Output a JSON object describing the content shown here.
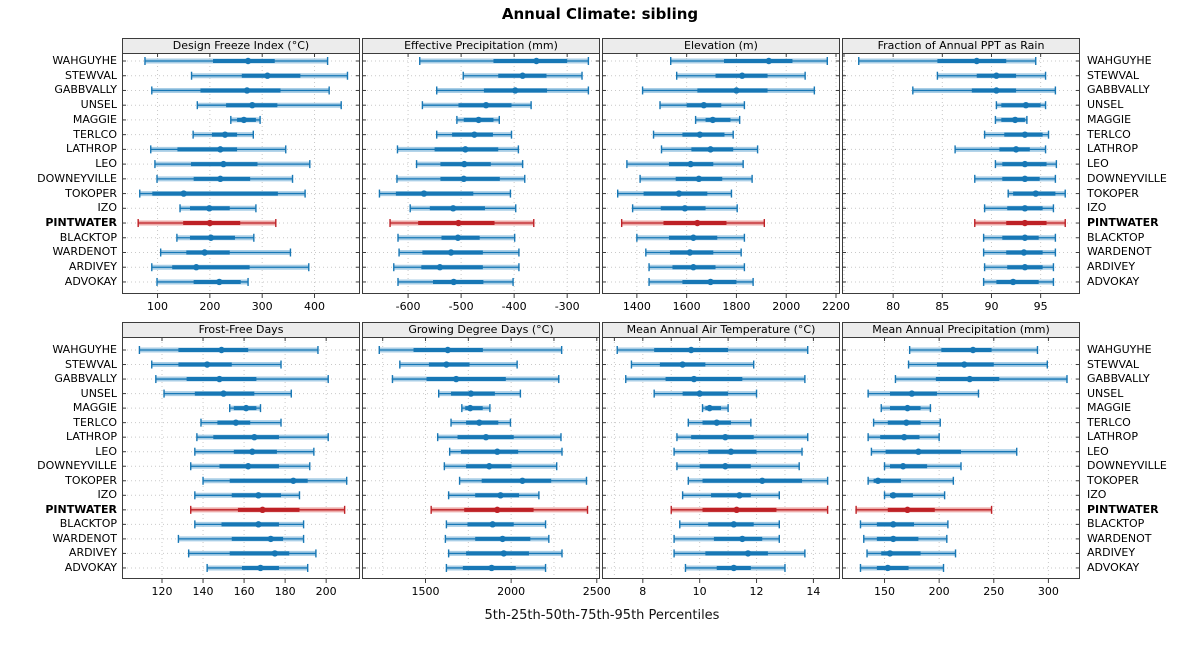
{
  "title": "Annual Climate: sibling",
  "caption": "5th-25th-50th-75th-95th Percentiles",
  "percentile_labels": [
    "5th",
    "25th",
    "50th",
    "75th",
    "95th"
  ],
  "colors": {
    "series": "#1777b5",
    "series_light": "#a9cee6",
    "highlight": "#be2126",
    "highlight_light": "#edadab",
    "grid": "#c9c9c9",
    "border": "#3c3c3c",
    "header_bg": "#ececec"
  },
  "sites": [
    {
      "name": "WAHGUYHE",
      "highlight": false
    },
    {
      "name": "STEWVAL",
      "highlight": false
    },
    {
      "name": "GABBVALLY",
      "highlight": false
    },
    {
      "name": "UNSEL",
      "highlight": false
    },
    {
      "name": "MAGGIE",
      "highlight": false
    },
    {
      "name": "TERLCO",
      "highlight": false
    },
    {
      "name": "LATHROP",
      "highlight": false
    },
    {
      "name": "LEO",
      "highlight": false
    },
    {
      "name": "DOWNEYVILLE",
      "highlight": false
    },
    {
      "name": "TOKOPER",
      "highlight": false
    },
    {
      "name": "IZO",
      "highlight": false
    },
    {
      "name": "PINTWATER",
      "highlight": true
    },
    {
      "name": "BLACKTOP",
      "highlight": false
    },
    {
      "name": "WARDENOT",
      "highlight": false
    },
    {
      "name": "ARDIVEY",
      "highlight": false
    },
    {
      "name": "ADVOKAY",
      "highlight": false
    }
  ],
  "chart_data": {
    "type": "dotplot-interval",
    "note": "Each row shows 5th-25th-50th-75th-95th percentiles per site; values array order matches sites array (top to bottom).",
    "panels": [
      {
        "title": "Design Freeze Index (°C)",
        "ticks": [
          100,
          200,
          300,
          400
        ],
        "grid": [
          100,
          200,
          300,
          400
        ],
        "range": [
          34,
          485
        ],
        "values": [
          [
            76,
            206,
            273,
            324,
            425
          ],
          [
            165,
            261,
            310,
            373,
            463
          ],
          [
            89,
            182,
            271,
            335,
            428
          ],
          [
            176,
            231,
            281,
            329,
            451
          ],
          [
            240,
            252,
            265,
            288,
            296
          ],
          [
            168,
            204,
            229,
            252,
            283
          ],
          [
            87,
            138,
            220,
            252,
            345
          ],
          [
            95,
            164,
            226,
            291,
            391
          ],
          [
            99,
            169,
            220,
            277,
            358
          ],
          [
            66,
            90,
            150,
            330,
            382
          ],
          [
            143,
            162,
            199,
            238,
            288
          ],
          [
            63,
            149,
            200,
            258,
            326
          ],
          [
            137,
            162,
            202,
            248,
            284
          ],
          [
            106,
            155,
            190,
            238,
            354
          ],
          [
            89,
            128,
            174,
            276,
            389
          ],
          [
            99,
            169,
            218,
            259,
            273
          ]
        ]
      },
      {
        "title": "Effective Precipitation (mm)",
        "ticks": [
          -600,
          -500,
          -400,
          -300
        ],
        "grid": [
          -600,
          -500,
          -400,
          -300
        ],
        "range": [
          -685,
          -240
        ],
        "values": [
          [
            -578,
            -439,
            -358,
            -300,
            -260
          ],
          [
            -496,
            -430,
            -384,
            -339,
            -272
          ],
          [
            -546,
            -457,
            -398,
            -338,
            -260
          ],
          [
            -573,
            -505,
            -453,
            -405,
            -368
          ],
          [
            -508,
            -495,
            -467,
            -439,
            -428
          ],
          [
            -546,
            -517,
            -475,
            -440,
            -405
          ],
          [
            -620,
            -550,
            -492,
            -430,
            -392
          ],
          [
            -584,
            -539,
            -494,
            -444,
            -384
          ],
          [
            -621,
            -539,
            -495,
            -427,
            -380
          ],
          [
            -654,
            -623,
            -570,
            -477,
            -407
          ],
          [
            -596,
            -559,
            -515,
            -455,
            -397
          ],
          [
            -634,
            -581,
            -505,
            -437,
            -363
          ],
          [
            -619,
            -537,
            -506,
            -465,
            -399
          ],
          [
            -617,
            -573,
            -519,
            -459,
            -391
          ],
          [
            -627,
            -575,
            -540,
            -459,
            -391
          ],
          [
            -619,
            -553,
            -514,
            -458,
            -402
          ]
        ]
      },
      {
        "title": "Elevation (m)",
        "ticks": [
          1400,
          1600,
          1800,
          2000,
          2200
        ],
        "grid": [
          1400,
          1600,
          1800,
          2000,
          2200
        ],
        "range": [
          1264,
          2212
        ],
        "values": [
          [
            1536,
            1750,
            1930,
            2025,
            2165
          ],
          [
            1560,
            1716,
            1823,
            1925,
            2076
          ],
          [
            1423,
            1643,
            1800,
            1925,
            2113
          ],
          [
            1493,
            1600,
            1669,
            1739,
            1832
          ],
          [
            1636,
            1676,
            1705,
            1776,
            1813
          ],
          [
            1467,
            1583,
            1653,
            1752,
            1787
          ],
          [
            1499,
            1619,
            1696,
            1787,
            1885
          ],
          [
            1360,
            1529,
            1616,
            1707,
            1827
          ],
          [
            1413,
            1556,
            1649,
            1743,
            1863
          ],
          [
            1323,
            1427,
            1569,
            1683,
            1780
          ],
          [
            1383,
            1496,
            1593,
            1676,
            1803
          ],
          [
            1339,
            1507,
            1643,
            1760,
            1912
          ],
          [
            1400,
            1529,
            1627,
            1723,
            1832
          ],
          [
            1436,
            1533,
            1613,
            1707,
            1819
          ],
          [
            1449,
            1543,
            1627,
            1716,
            1832
          ],
          [
            1449,
            1583,
            1696,
            1800,
            1867
          ]
        ]
      },
      {
        "title": "Fraction of Annual PPT as Rain",
        "ticks": [
          80,
          85,
          90,
          95
        ],
        "grid": [
          75,
          80,
          85,
          90,
          95
        ],
        "range": [
          74.9,
          98.9
        ],
        "values": [
          [
            76.5,
            84.5,
            88.5,
            91.5,
            94.5
          ],
          [
            84.5,
            88.5,
            90.5,
            92.5,
            95.5
          ],
          [
            82.0,
            88.0,
            90.5,
            92.5,
            96.5
          ],
          [
            90.5,
            91.0,
            93.5,
            95.0,
            95.5
          ],
          [
            90.4,
            91.0,
            92.4,
            93.4,
            93.6
          ],
          [
            89.3,
            91.3,
            93.4,
            95.2,
            95.8
          ],
          [
            86.3,
            90.8,
            92.5,
            93.9,
            95.5
          ],
          [
            90.4,
            91.1,
            93.4,
            95.6,
            96.6
          ],
          [
            88.3,
            91.1,
            93.4,
            94.9,
            96.5
          ],
          [
            91.7,
            92.2,
            94.5,
            96.5,
            97.5
          ],
          [
            89.3,
            91.6,
            93.4,
            95.2,
            96.3
          ],
          [
            88.3,
            91.5,
            93.4,
            95.6,
            97.5
          ],
          [
            89.2,
            91.1,
            93.4,
            94.8,
            96.5
          ],
          [
            89.2,
            91.5,
            93.3,
            95.2,
            96.5
          ],
          [
            89.3,
            91.6,
            93.4,
            95.2,
            96.3
          ],
          [
            89.2,
            90.5,
            92.2,
            94.8,
            96.3
          ]
        ]
      },
      {
        "title": "Frost-Free Days",
        "ticks": [
          120,
          140,
          160,
          180,
          200
        ],
        "grid": [
          120,
          140,
          160,
          180,
          200
        ],
        "range": [
          101,
          216
        ],
        "values": [
          [
            109,
            128,
            149,
            162,
            196
          ],
          [
            115,
            128,
            142,
            154,
            178
          ],
          [
            117,
            132,
            148,
            166,
            201
          ],
          [
            121,
            136,
            150,
            165,
            183
          ],
          [
            153,
            155,
            161,
            166,
            168
          ],
          [
            139,
            147,
            156,
            163,
            178
          ],
          [
            137,
            145,
            165,
            177,
            201
          ],
          [
            136,
            155,
            164,
            176,
            194
          ],
          [
            134,
            148,
            162,
            177,
            192
          ],
          [
            140,
            153,
            184,
            191,
            210
          ],
          [
            136,
            154,
            167,
            178,
            187
          ],
          [
            134,
            157,
            169,
            187,
            209
          ],
          [
            136,
            149,
            167,
            177,
            189
          ],
          [
            128,
            154,
            173,
            179,
            189
          ],
          [
            133,
            153,
            175,
            182,
            195
          ],
          [
            142,
            159,
            168,
            177,
            191
          ]
        ]
      },
      {
        "title": "Growing Degree Days (°C)",
        "ticks": [
          1500,
          2000,
          2500
        ],
        "grid": [
          1250,
          1500,
          1750,
          2000,
          2250,
          2500
        ],
        "range": [
          1135,
          2513
        ],
        "values": [
          [
            1230,
            1430,
            1630,
            1835,
            2295
          ],
          [
            1350,
            1520,
            1622,
            1757,
            2035
          ],
          [
            1307,
            1506,
            1679,
            1969,
            2278
          ],
          [
            1577,
            1649,
            1765,
            1905,
            2054
          ],
          [
            1712,
            1732,
            1761,
            1834,
            1876
          ],
          [
            1649,
            1737,
            1814,
            1925,
            1996
          ],
          [
            1571,
            1687,
            1853,
            2015,
            2291
          ],
          [
            1641,
            1707,
            1919,
            2041,
            2297
          ],
          [
            1610,
            1737,
            1872,
            2002,
            2266
          ],
          [
            1699,
            1828,
            2066,
            2234,
            2440
          ],
          [
            1635,
            1790,
            1938,
            2046,
            2162
          ],
          [
            1533,
            1726,
            1919,
            2131,
            2446
          ],
          [
            1622,
            1745,
            1892,
            2015,
            2201
          ],
          [
            1616,
            1790,
            1950,
            2112,
            2220
          ],
          [
            1635,
            1737,
            1957,
            2104,
            2297
          ],
          [
            1622,
            1718,
            1886,
            2027,
            2201
          ]
        ]
      },
      {
        "title": "Mean Annual Air Temperature (°C)",
        "ticks": [
          8,
          10,
          12,
          14
        ],
        "grid": [
          7,
          8,
          9,
          10,
          11,
          12,
          13,
          14
        ],
        "range": [
          6.6,
          14.9
        ],
        "values": [
          [
            7.1,
            8.4,
            9.7,
            11.0,
            13.8
          ],
          [
            7.6,
            8.6,
            9.4,
            10.2,
            11.9
          ],
          [
            7.4,
            8.8,
            9.8,
            11.5,
            13.7
          ],
          [
            8.4,
            9.4,
            10.0,
            11.0,
            12.0
          ],
          [
            10.1,
            10.2,
            10.35,
            10.75,
            11.0
          ],
          [
            9.6,
            10.1,
            10.6,
            11.1,
            11.8
          ],
          [
            9.2,
            9.7,
            10.9,
            11.9,
            13.8
          ],
          [
            9.1,
            10.3,
            11.1,
            12.0,
            13.6
          ],
          [
            9.2,
            10.0,
            10.9,
            11.8,
            13.5
          ],
          [
            9.6,
            10.1,
            12.2,
            13.6,
            14.5
          ],
          [
            9.4,
            10.4,
            11.4,
            11.8,
            12.8
          ],
          [
            9.0,
            10.1,
            11.3,
            12.7,
            14.5
          ],
          [
            9.3,
            10.3,
            11.2,
            11.9,
            12.8
          ],
          [
            9.1,
            10.5,
            11.5,
            12.2,
            12.8
          ],
          [
            9.1,
            10.2,
            11.7,
            12.4,
            13.7
          ],
          [
            9.5,
            10.6,
            11.2,
            11.8,
            13.0
          ]
        ]
      },
      {
        "title": "Mean Annual Precipitation (mm)",
        "ticks": [
          150,
          200,
          250,
          300
        ],
        "grid": [
          150,
          200,
          250,
          300
        ],
        "range": [
          112,
          328
        ],
        "values": [
          [
            173,
            202,
            231,
            248,
            290
          ],
          [
            172,
            198,
            223,
            250,
            299
          ],
          [
            160,
            197,
            228,
            255,
            317
          ],
          [
            135,
            155,
            175,
            198,
            236
          ],
          [
            147,
            155,
            171,
            183,
            192
          ],
          [
            140,
            153,
            170,
            183,
            201
          ],
          [
            135,
            146,
            168,
            182,
            200
          ],
          [
            138,
            151,
            181,
            220,
            271
          ],
          [
            150,
            155,
            167,
            189,
            220
          ],
          [
            135,
            140,
            144,
            165,
            213
          ],
          [
            150,
            155,
            158,
            176,
            205
          ],
          [
            124,
            153,
            171,
            196,
            248
          ],
          [
            128,
            143,
            158,
            177,
            208
          ],
          [
            131,
            143,
            158,
            181,
            207
          ],
          [
            134,
            147,
            155,
            183,
            215
          ],
          [
            128,
            143,
            153,
            172,
            204
          ]
        ]
      }
    ]
  }
}
